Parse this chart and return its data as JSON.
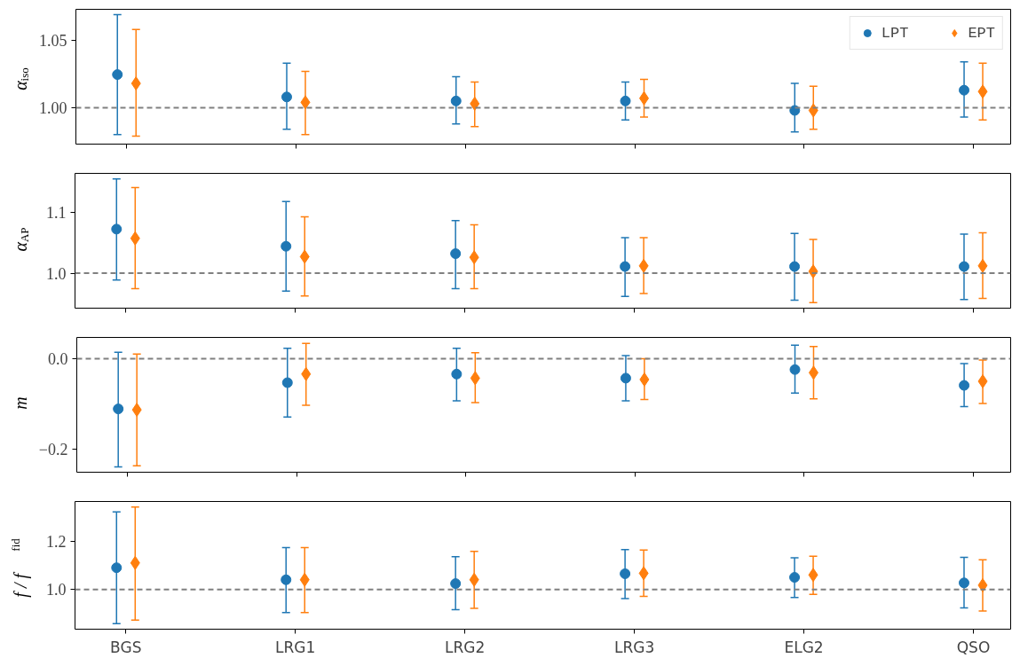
{
  "chart_data": [
    {
      "type": "scatter",
      "categories": [
        null,
        null,
        null,
        null,
        null,
        null
      ],
      "ylabel": "α$_{iso}$",
      "ylim": [
        0.973,
        1.073
      ],
      "yticks": [
        {
          "value": 1.0,
          "label": "1.00"
        },
        {
          "value": 1.05,
          "label": "1.05"
        }
      ],
      "tick_labels": "y",
      "grid": false,
      "legend": "top right",
      "ref_lines": [
        {
          "axis": "y",
          "value": 1.0,
          "color": "#808080",
          "line_style": "dashed"
        }
      ],
      "series": [
        {
          "name": "LPT",
          "color": "#1f77b4",
          "marker": "circle",
          "values": [
            1.0246,
            1.008,
            1.005,
            1.005,
            0.998,
            1.013
          ],
          "errors": [
            [
              0.98,
              1.069
            ],
            [
              0.984,
              1.033
            ],
            [
              0.988,
              1.023
            ],
            [
              0.991,
              1.019
            ],
            [
              0.982,
              1.018
            ],
            [
              0.993,
              1.034
            ]
          ]
        },
        {
          "name": "EPT",
          "color": "#ff7f0e",
          "marker": "diamond",
          "values": [
            1.018,
            1.004,
            1.003,
            1.007,
            0.998,
            1.012
          ],
          "errors": [
            [
              0.979,
              1.058
            ],
            [
              0.98,
              1.027
            ],
            [
              0.986,
              1.019
            ],
            [
              0.993,
              1.021
            ],
            [
              0.984,
              1.016
            ],
            [
              0.991,
              1.033
            ]
          ]
        }
      ]
    },
    {
      "type": "scatter",
      "categories": [
        null,
        null,
        null,
        null,
        null,
        null
      ],
      "ylabel": "α$_{AP}$",
      "ylim": [
        0.943,
        1.163
      ],
      "yticks": [
        {
          "value": 1.0,
          "label": "1.0"
        },
        {
          "value": 1.1,
          "label": "1.1"
        }
      ],
      "tick_labels": "y",
      "grid": false,
      "ref_lines": [
        {
          "axis": "y",
          "value": 1.0,
          "color": "#808080",
          "line_style": "dashed"
        }
      ],
      "series": [
        {
          "color": "#1f77b4",
          "marker": "circle",
          "values": [
            1.072,
            1.044,
            1.032,
            1.011,
            1.011,
            1.011
          ],
          "errors": [
            [
              0.989,
              1.154
            ],
            [
              0.971,
              1.117
            ],
            [
              0.975,
              1.086
            ],
            [
              0.962,
              1.058
            ],
            [
              0.956,
              1.065
            ],
            [
              0.957,
              1.064
            ]
          ]
        },
        {
          "color": "#ff7f0e",
          "marker": "diamond",
          "values": [
            1.057,
            1.027,
            1.026,
            1.012,
            1.003,
            1.012
          ],
          "errors": [
            [
              0.975,
              1.14
            ],
            [
              0.963,
              1.092
            ],
            [
              0.975,
              1.079
            ],
            [
              0.967,
              1.058
            ],
            [
              0.952,
              1.055
            ],
            [
              0.959,
              1.066
            ]
          ]
        }
      ]
    },
    {
      "type": "scatter",
      "categories": [
        null,
        null,
        null,
        null,
        null,
        null
      ],
      "ylabel": "m",
      "ylim": [
        -0.251,
        0.047
      ],
      "yticks": [
        {
          "value": -0.2,
          "label": "−0.2"
        },
        {
          "value": 0.0,
          "label": "0.0"
        }
      ],
      "tick_labels": "y",
      "grid": false,
      "ref_lines": [
        {
          "axis": "y",
          "value": 0.0,
          "color": "#808080",
          "line_style": "dashed"
        }
      ],
      "series": [
        {
          "color": "#1f77b4",
          "marker": "circle",
          "values": [
            -0.111,
            -0.053,
            -0.034,
            -0.043,
            -0.024,
            -0.059
          ],
          "errors": [
            [
              -0.239,
              0.014
            ],
            [
              -0.129,
              0.023
            ],
            [
              -0.093,
              0.023
            ],
            [
              -0.093,
              0.007
            ],
            [
              -0.076,
              0.03
            ],
            [
              -0.106,
              -0.011
            ]
          ]
        },
        {
          "color": "#ff7f0e",
          "marker": "diamond",
          "values": [
            -0.113,
            -0.034,
            -0.043,
            -0.046,
            -0.031,
            -0.05
          ],
          "errors": [
            [
              -0.237,
              0.01
            ],
            [
              -0.103,
              0.034
            ],
            [
              -0.097,
              0.013
            ],
            [
              -0.09,
              0.0
            ],
            [
              -0.089,
              0.027
            ],
            [
              -0.099,
              -0.003
            ]
          ]
        }
      ]
    },
    {
      "type": "scatter",
      "categories": [
        "BGS",
        "LRG1",
        "LRG2",
        "LRG3",
        "ELG2",
        "QSO"
      ],
      "ylabel": "f / f$^{fid}$",
      "ylim": [
        0.835,
        1.367
      ],
      "yticks": [
        {
          "value": 1.0,
          "label": "1.0"
        },
        {
          "value": 1.2,
          "label": "1.2"
        }
      ],
      "grid": false,
      "ref_lines": [
        {
          "axis": "y",
          "value": 1.0,
          "color": "#808080",
          "line_style": "dashed"
        }
      ],
      "series": [
        {
          "color": "#1f77b4",
          "marker": "circle",
          "values": [
            1.091,
            1.041,
            1.025,
            1.066,
            1.051,
            1.028
          ],
          "errors": [
            [
              0.858,
              1.324
            ],
            [
              0.904,
              1.175
            ],
            [
              0.916,
              1.137
            ],
            [
              0.962,
              1.167
            ],
            [
              0.967,
              1.132
            ],
            [
              0.924,
              1.134
            ]
          ]
        },
        {
          "color": "#ff7f0e",
          "marker": "diamond",
          "values": [
            1.111,
            1.041,
            1.041,
            1.068,
            1.061,
            1.018
          ],
          "errors": [
            [
              0.873,
              1.344
            ],
            [
              0.904,
              1.175
            ],
            [
              0.922,
              1.159
            ],
            [
              0.972,
              1.165
            ],
            [
              0.98,
              1.139
            ],
            [
              0.911,
              1.124
            ]
          ]
        }
      ]
    }
  ]
}
